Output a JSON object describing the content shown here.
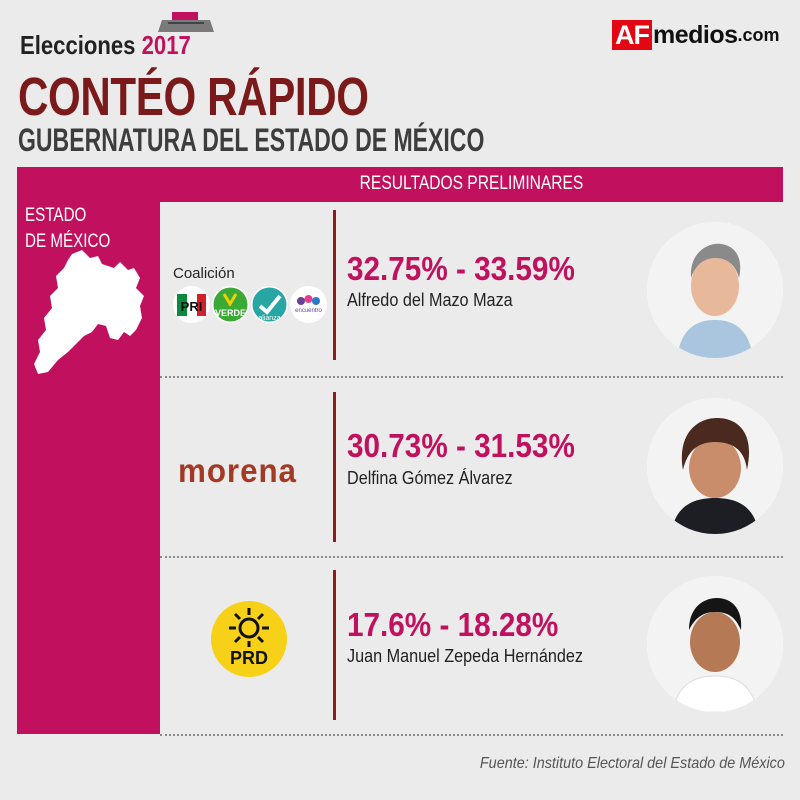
{
  "header": {
    "elecciones": "Elecciones",
    "year": "2017",
    "brand_af": "AF",
    "brand_medios": "medios",
    "brand_com": ".com",
    "title": "CONTÉO RÁPIDO",
    "subtitle": "GUBERNATURA DEL ESTADO DE MÉXICO"
  },
  "panel": {
    "results_label": "RESULTADOS PRELIMINARES",
    "state_line1": "ESTADO",
    "state_line2": "DE MÉXICO"
  },
  "candidates": [
    {
      "party_label": "Coalición",
      "party_logos": [
        "PRI",
        "VERDE",
        "alianza",
        "encuentro"
      ],
      "range": "32.75% - 33.59%",
      "name": "Alfredo del Mazo Maza"
    },
    {
      "party_label": "morena",
      "range": "30.73% - 31.53%",
      "name": "Delfina Gómez Álvarez"
    },
    {
      "party_label": "PRD",
      "range": "17.6% - 18.28%",
      "name": "Juan Manuel Zepeda Hernández"
    }
  ],
  "colors": {
    "magenta": "#c0105e",
    "maroon": "#7b1a1a",
    "background": "#ebebeb"
  },
  "footer": {
    "source": "Fuente: Instituto Electoral del Estado de México"
  }
}
